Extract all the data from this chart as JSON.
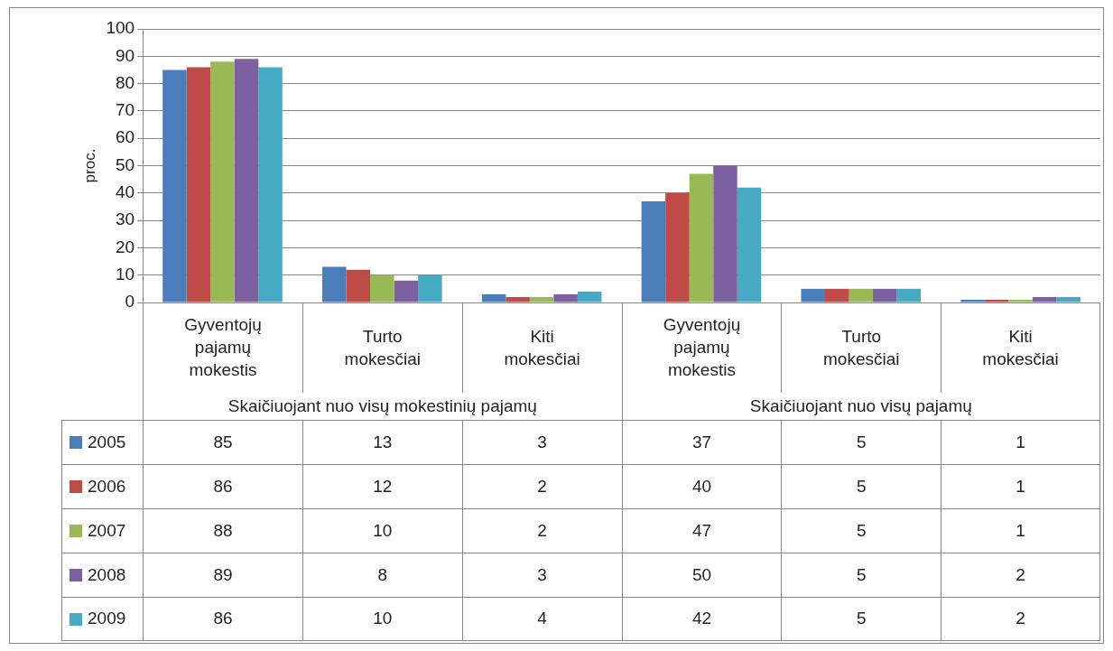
{
  "chart_data": {
    "type": "bar",
    "ylabel": "proc.",
    "categories": [
      "Gyventojų pajamų mokestis",
      "Turto mokesčiai",
      "Kiti mokesčiai",
      "Gyventojų pajamų mokestis",
      "Turto mokesčiai",
      "Kiti mokesčiai"
    ],
    "series": [
      {
        "name": "2005",
        "color": "#4a7ebb",
        "values": [
          85,
          13,
          3,
          37,
          5,
          1
        ]
      },
      {
        "name": "2006",
        "color": "#be4b48",
        "values": [
          86,
          12,
          2,
          40,
          5,
          1
        ]
      },
      {
        "name": "2007",
        "color": "#98b954",
        "values": [
          88,
          10,
          2,
          47,
          5,
          1
        ]
      },
      {
        "name": "2008",
        "color": "#7d60a0",
        "values": [
          89,
          8,
          3,
          50,
          5,
          2
        ]
      },
      {
        "name": "2009",
        "color": "#46aac5",
        "values": [
          86,
          10,
          4,
          42,
          5,
          2
        ]
      }
    ],
    "ylim": [
      0,
      100
    ],
    "yticks": [
      0,
      10,
      20,
      30,
      40,
      50,
      60,
      70,
      80,
      90,
      100
    ],
    "grid": "y",
    "legend": "bottom left",
    "data_labels": true,
    "annotations": [
      "Skaičiuojant nuo visų mokestinių pajamų",
      "Skaičiuojant nuo visų pajamų"
    ]
  }
}
